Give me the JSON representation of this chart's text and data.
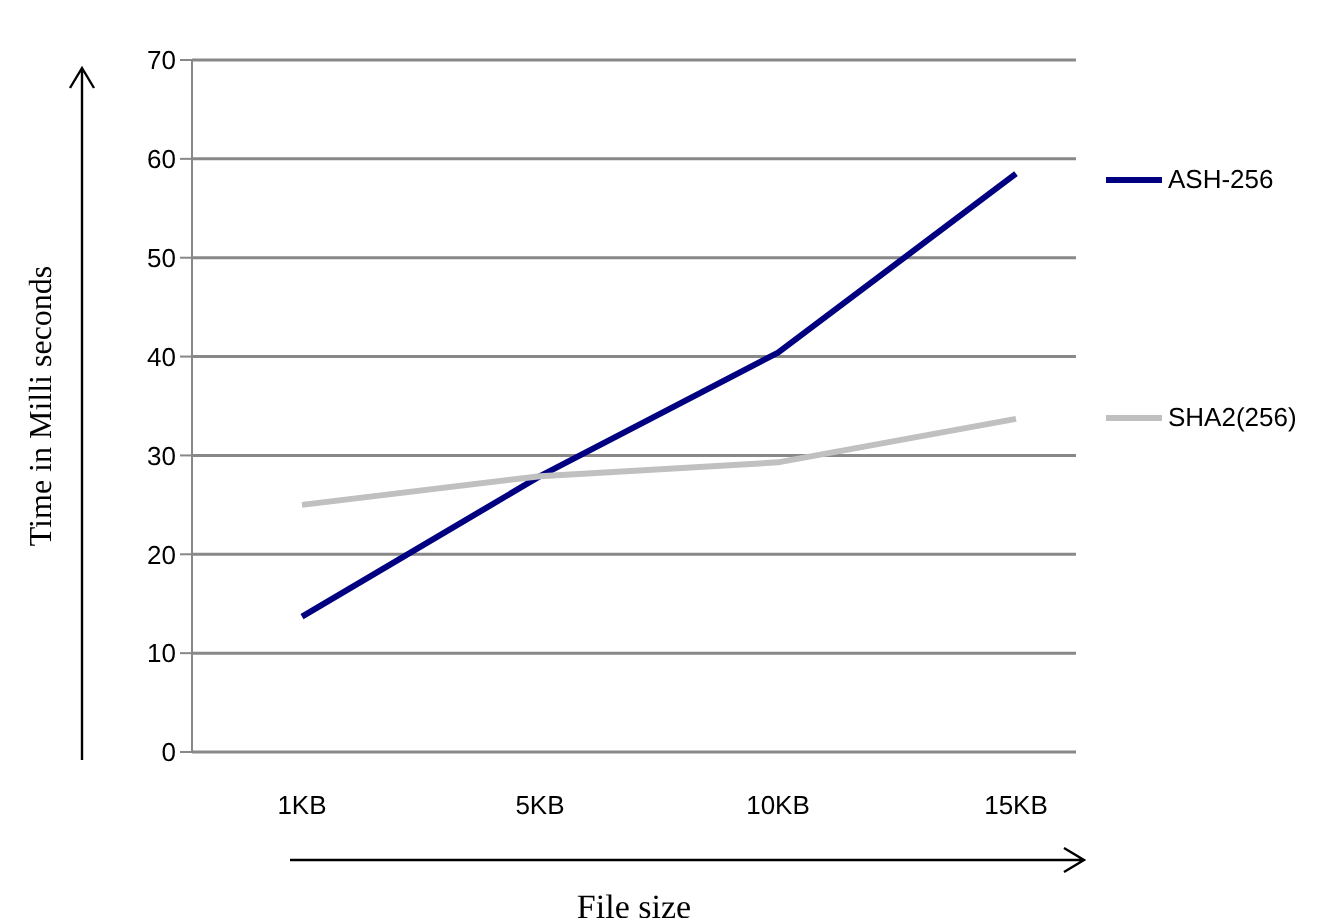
{
  "chart_data": {
    "type": "line",
    "xlabel": "File size",
    "ylabel": "Time in Milli seconds",
    "categories": [
      "1KB",
      "5KB",
      "10KB",
      "15KB"
    ],
    "series": [
      {
        "name": "ASH-256",
        "color": "#000080",
        "values": [
          13.7,
          27.9,
          40.4,
          58.5
        ]
      },
      {
        "name": "SHA2(256)",
        "color": "#c0c0c0",
        "values": [
          25,
          27.9,
          29.3,
          33.7
        ]
      }
    ],
    "ylim": [
      0,
      70
    ],
    "yticks": [
      0,
      10,
      20,
      30,
      40,
      50,
      60,
      70
    ],
    "grid": "y",
    "legend": "right",
    "marker": "none",
    "line_style": "solid"
  }
}
